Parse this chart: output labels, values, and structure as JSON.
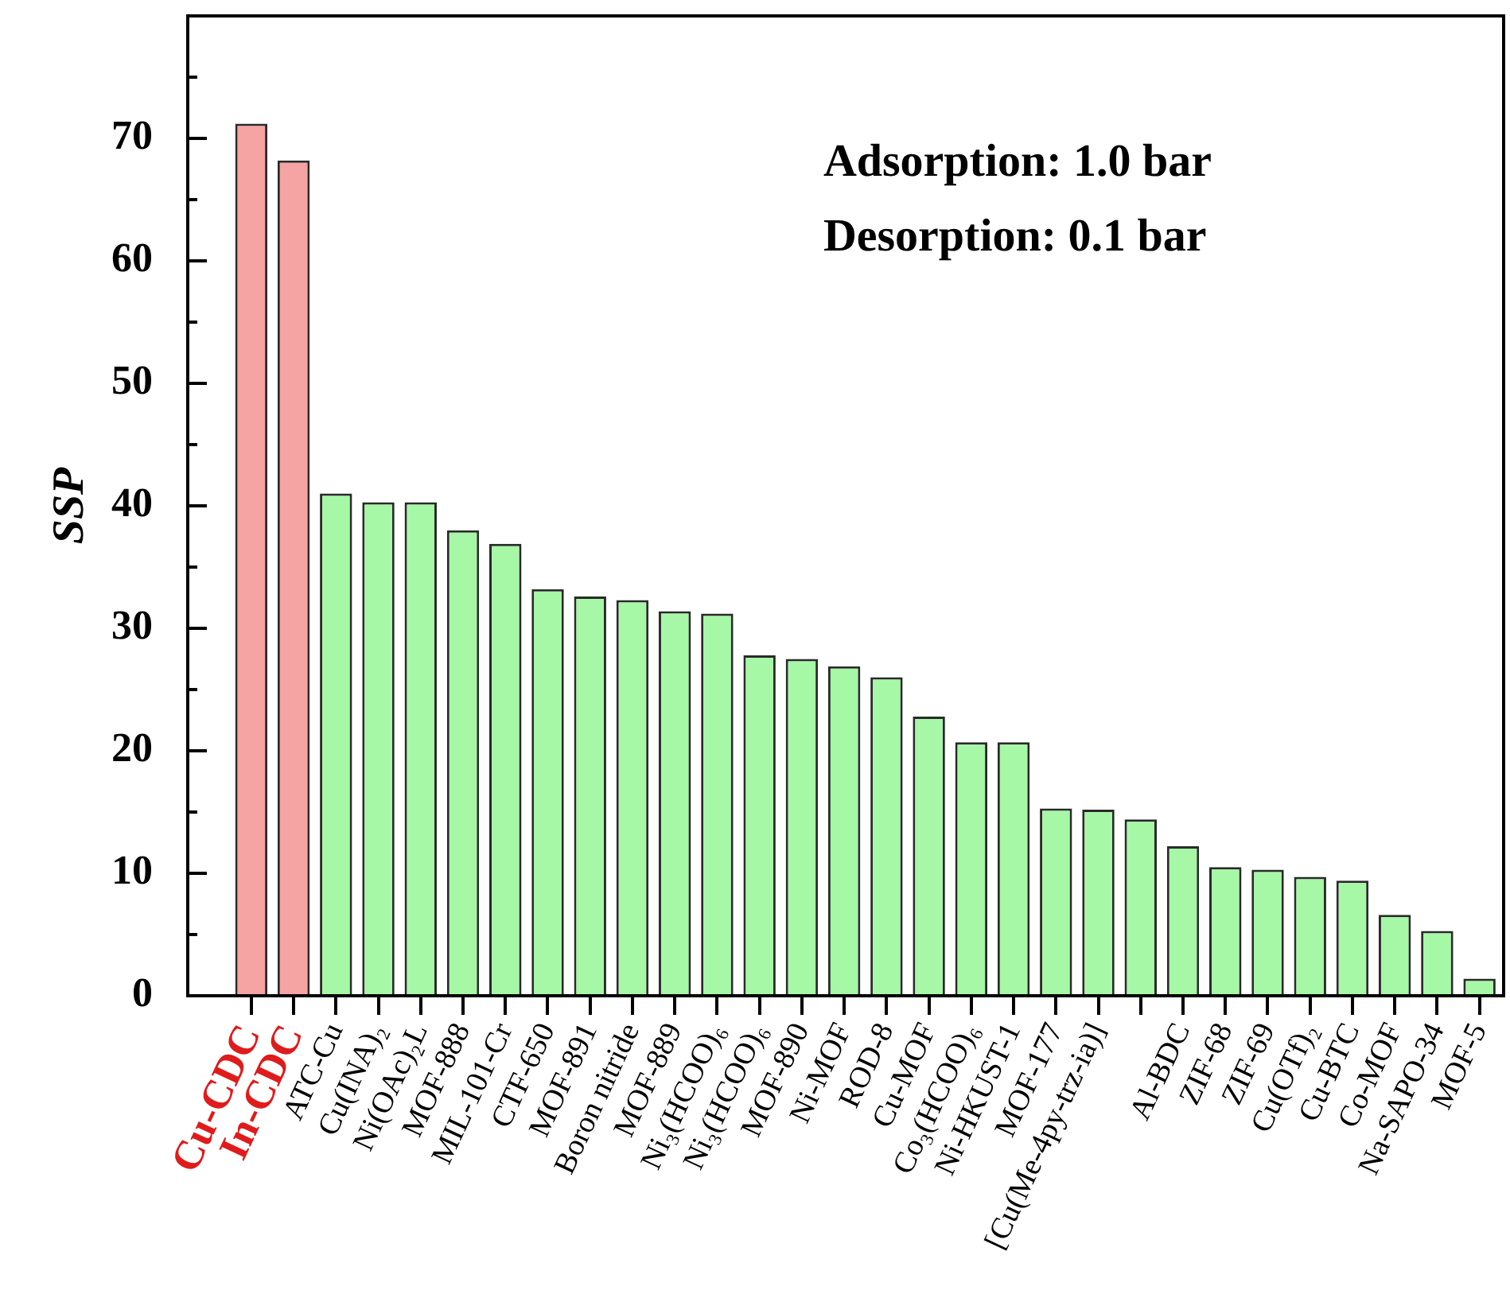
{
  "chart_data": {
    "type": "bar",
    "ylabel": "SSP",
    "annotations": [
      "Adsorption: 1.0 bar",
      "Desorption: 0.1 bar"
    ],
    "categories": [
      "Cu-CDC",
      "In-CDC",
      "ATC-Cu",
      "Cu(INA)₂",
      "Ni(OAc)₂L",
      "MOF-888",
      "MIL-101-Cr",
      "CTF-650",
      "MOF-891",
      "Boron nitride",
      "MOF-889",
      "Ni₃(HCOO)₆",
      "Ni₃(HCOO)₆",
      "MOF-890",
      "Ni-MOF",
      "ROD-8",
      "Cu-MOF",
      "Co₃(HCOO)₆",
      "Ni-HKUST-1",
      "MOF-177",
      "[Cu(Me-4py-trz-ia)]",
      null,
      "Al-BDC",
      "ZIF-68",
      "ZIF-69",
      "Cu(OTf)₂",
      "Cu-BTC",
      "Co-MOF",
      "Na-SAPO-34",
      "MOF-5"
    ],
    "values": [
      71.2,
      68.2,
      41.0,
      40.3,
      40.3,
      38.0,
      36.9,
      33.2,
      32.6,
      32.3,
      31.4,
      31.2,
      27.8,
      27.5,
      26.9,
      26.0,
      22.8,
      20.7,
      20.7,
      15.3,
      15.2,
      14.4,
      12.2,
      10.5,
      10.3,
      9.7,
      9.4,
      6.6,
      5.3,
      1.4
    ],
    "colors": [
      "#f5a3a3",
      "#f5a3a3",
      "#a6f7a6",
      "#a6f7a6",
      "#a6f7a6",
      "#a6f7a6",
      "#a6f7a6",
      "#a6f7a6",
      "#a6f7a6",
      "#a6f7a6",
      "#a6f7a6",
      "#a6f7a6",
      "#a6f7a6",
      "#a6f7a6",
      "#a6f7a6",
      "#a6f7a6",
      "#a6f7a6",
      "#a6f7a6",
      "#a6f7a6",
      "#a6f7a6",
      "#a6f7a6",
      "#a6f7a6",
      "#a6f7a6",
      "#a6f7a6",
      "#a6f7a6",
      "#a6f7a6",
      "#a6f7a6",
      "#a6f7a6",
      "#a6f7a6",
      "#a6f7a6"
    ],
    "ylim": [
      0,
      80
    ],
    "yticks": [
      0,
      {
        "value": 5,
        "label": null
      },
      10,
      {
        "value": 15,
        "label": null
      },
      20,
      {
        "value": 25,
        "label": null
      },
      30,
      {
        "value": 35,
        "label": null
      },
      40,
      {
        "value": 45,
        "label": null
      },
      50,
      {
        "value": 55,
        "label": null
      },
      60,
      {
        "value": 65,
        "label": null
      },
      70,
      {
        "value": 75,
        "label": null
      }
    ]
  }
}
